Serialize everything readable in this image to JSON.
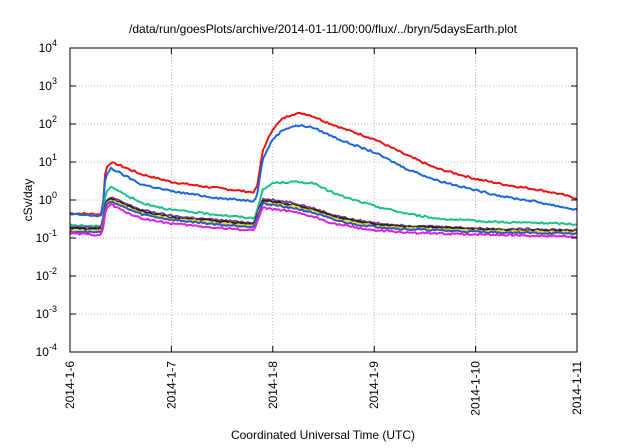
{
  "chart_data": {
    "type": "line",
    "title": "/data/run/goesPlots/archive/2014-01-11/00:00/flux/../bryn/5daysEarth.plot",
    "xlabel": "Coordinated Universal Time (UTC)",
    "ylabel": "cSv/day",
    "yscale": "log",
    "ylim": [
      0.0001,
      10000
    ],
    "y_ticks": [
      {
        "value": 0.0001,
        "base": "10",
        "exp": "-4"
      },
      {
        "value": 0.001,
        "base": "10",
        "exp": "-3"
      },
      {
        "value": 0.01,
        "base": "10",
        "exp": "-2"
      },
      {
        "value": 0.1,
        "base": "10",
        "exp": "-1"
      },
      {
        "value": 1,
        "base": "10",
        "exp": "0"
      },
      {
        "value": 10,
        "base": "10",
        "exp": "1"
      },
      {
        "value": 100,
        "base": "10",
        "exp": "2"
      },
      {
        "value": 1000,
        "base": "10",
        "exp": "3"
      },
      {
        "value": 10000,
        "base": "10",
        "exp": "4"
      }
    ],
    "x_unit": "days",
    "xlim": [
      0,
      5
    ],
    "x_ticks": [
      {
        "value": 0,
        "label": "2014-1-6"
      },
      {
        "value": 1,
        "label": "2014-1-7"
      },
      {
        "value": 2,
        "label": "2014-1-8"
      },
      {
        "value": 3,
        "label": "2014-1-9"
      },
      {
        "value": 4,
        "label": "2014-1-10"
      },
      {
        "value": 5,
        "label": "2014-1-11"
      }
    ],
    "grid": true,
    "legend": "none",
    "series": [
      {
        "color": "#ee1111",
        "x": [
          0,
          0.3,
          0.32,
          0.35,
          0.4,
          0.5,
          0.7,
          1,
          1.3,
          1.5,
          1.8,
          1.82,
          1.85,
          1.9,
          2,
          2.1,
          2.2,
          2.3,
          2.4,
          2.5,
          2.7,
          3,
          3.3,
          3.6,
          4,
          4.3,
          4.6,
          4.8,
          5
        ],
        "y": [
          0.45,
          0.42,
          0.5,
          6.5,
          9.8,
          8,
          4.8,
          3,
          2.3,
          2,
          1.6,
          1.7,
          2.5,
          20,
          75,
          140,
          185,
          190,
          160,
          120,
          75,
          40,
          16,
          7,
          3.6,
          2.5,
          1.9,
          1.5,
          1.1
        ]
      },
      {
        "color": "#1a66e0",
        "x": [
          0,
          0.3,
          0.32,
          0.35,
          0.4,
          0.5,
          0.7,
          1,
          1.3,
          1.5,
          1.8,
          1.82,
          1.85,
          1.9,
          2,
          2.1,
          2.2,
          2.3,
          2.4,
          2.5,
          2.7,
          3,
          3.3,
          3.6,
          4,
          4.3,
          4.6,
          4.8,
          5
        ],
        "y": [
          0.42,
          0.38,
          0.45,
          4,
          7,
          5,
          2.6,
          1.7,
          1.3,
          1.1,
          0.95,
          1,
          1.6,
          12,
          40,
          70,
          88,
          90,
          80,
          60,
          35,
          18,
          7,
          3.4,
          1.8,
          1.2,
          0.9,
          0.7,
          0.55
        ]
      },
      {
        "color": "#1dc08a",
        "x": [
          0,
          0.3,
          0.32,
          0.35,
          0.4,
          0.5,
          0.7,
          1,
          1.3,
          1.5,
          1.8,
          1.82,
          1.85,
          1.9,
          2,
          2.2,
          2.4,
          2.5,
          2.7,
          3,
          3.3,
          3.6,
          4,
          4.3,
          4.6,
          5
        ],
        "y": [
          0.22,
          0.2,
          0.25,
          1.5,
          2.3,
          1.6,
          0.85,
          0.55,
          0.45,
          0.4,
          0.33,
          0.35,
          0.6,
          1.8,
          2.8,
          3,
          2.8,
          2,
          1.2,
          0.7,
          0.45,
          0.33,
          0.28,
          0.26,
          0.25,
          0.23
        ]
      },
      {
        "color": "#7d3c98",
        "x": [
          0,
          0.3,
          0.32,
          0.35,
          0.4,
          0.5,
          0.7,
          1,
          1.3,
          1.5,
          1.8,
          1.82,
          1.85,
          1.9,
          2,
          2.2,
          2.4,
          2.6,
          2.8,
          3,
          3.3,
          3.6,
          4,
          4.3,
          4.6,
          5
        ],
        "y": [
          0.2,
          0.19,
          0.22,
          0.9,
          1.2,
          0.9,
          0.55,
          0.38,
          0.32,
          0.29,
          0.25,
          0.27,
          0.5,
          1.05,
          1.0,
          0.85,
          0.6,
          0.4,
          0.3,
          0.25,
          0.21,
          0.2,
          0.18,
          0.17,
          0.17,
          0.16
        ]
      },
      {
        "color": "#222222",
        "x": [
          0,
          0.3,
          0.32,
          0.35,
          0.4,
          0.5,
          0.7,
          1,
          1.3,
          1.5,
          1.8,
          1.82,
          1.85,
          1.9,
          2,
          2.2,
          2.4,
          2.6,
          2.8,
          3,
          3.3,
          3.6,
          4,
          4.3,
          4.6,
          5
        ],
        "y": [
          0.18,
          0.17,
          0.2,
          0.85,
          1.1,
          0.85,
          0.5,
          0.35,
          0.3,
          0.27,
          0.23,
          0.25,
          0.45,
          0.95,
          0.9,
          0.75,
          0.55,
          0.37,
          0.28,
          0.23,
          0.2,
          0.19,
          0.17,
          0.16,
          0.16,
          0.15
        ]
      },
      {
        "color": "#dddd11",
        "x": [
          0,
          0.3,
          0.32,
          0.35,
          0.4,
          0.5,
          0.7,
          1,
          1.3,
          1.5,
          1.8,
          1.82,
          1.85,
          1.9,
          2,
          2.2,
          2.4,
          2.6,
          2.8,
          3,
          3.3,
          3.6,
          4,
          4.3,
          4.6,
          5
        ],
        "y": [
          0.16,
          0.15,
          0.18,
          0.75,
          1.0,
          0.75,
          0.45,
          0.32,
          0.27,
          0.24,
          0.21,
          0.22,
          0.4,
          0.85,
          0.8,
          0.68,
          0.5,
          0.33,
          0.25,
          0.21,
          0.18,
          0.17,
          0.155,
          0.15,
          0.145,
          0.14
        ]
      },
      {
        "color": "#3355cc",
        "x": [
          0,
          0.3,
          0.32,
          0.35,
          0.4,
          0.5,
          0.7,
          1,
          1.3,
          1.5,
          1.8,
          1.82,
          1.85,
          1.9,
          2,
          2.2,
          2.4,
          2.6,
          2.8,
          3,
          3.3,
          3.6,
          4,
          4.3,
          4.6,
          5
        ],
        "y": [
          0.15,
          0.14,
          0.17,
          0.7,
          0.95,
          0.7,
          0.42,
          0.3,
          0.25,
          0.22,
          0.2,
          0.21,
          0.37,
          0.8,
          0.75,
          0.62,
          0.46,
          0.3,
          0.23,
          0.2,
          0.17,
          0.16,
          0.145,
          0.14,
          0.135,
          0.13
        ]
      },
      {
        "color": "#e020e0",
        "x": [
          0,
          0.3,
          0.32,
          0.35,
          0.4,
          0.5,
          0.7,
          1,
          1.3,
          1.5,
          1.8,
          1.82,
          1.85,
          1.9,
          2,
          2.2,
          2.4,
          2.6,
          2.8,
          3,
          3.3,
          3.6,
          4,
          4.3,
          4.6,
          5
        ],
        "y": [
          0.13,
          0.12,
          0.14,
          0.55,
          0.78,
          0.55,
          0.33,
          0.24,
          0.2,
          0.18,
          0.16,
          0.17,
          0.3,
          0.62,
          0.58,
          0.48,
          0.36,
          0.24,
          0.19,
          0.16,
          0.14,
          0.13,
          0.125,
          0.12,
          0.115,
          0.11
        ]
      }
    ]
  }
}
